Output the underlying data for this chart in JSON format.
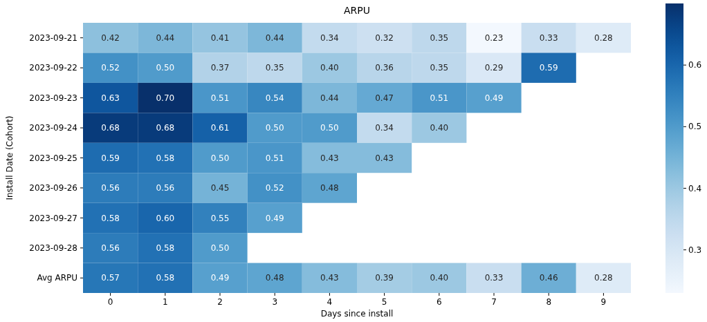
{
  "chart_data": {
    "type": "heatmap",
    "title": "ARPU",
    "xlabel": "Days since install",
    "ylabel": "Install Date (Cohort)",
    "categories": [
      "0",
      "1",
      "2",
      "3",
      "4",
      "5",
      "6",
      "7",
      "8",
      "9"
    ],
    "y_categories": [
      "2023-09-21",
      "2023-09-22",
      "2023-09-23",
      "2023-09-24",
      "2023-09-25",
      "2023-09-26",
      "2023-09-27",
      "2023-09-28",
      "Avg ARPU"
    ],
    "cells": [
      [
        0.42,
        0.44,
        0.41,
        0.44,
        0.34,
        0.32,
        0.35,
        0.23,
        0.33,
        0.28
      ],
      [
        0.52,
        0.5,
        0.37,
        0.35,
        0.4,
        0.36,
        0.35,
        0.29,
        0.59,
        null
      ],
      [
        0.63,
        0.7,
        0.51,
        0.54,
        0.44,
        0.47,
        0.51,
        0.49,
        null,
        null
      ],
      [
        0.68,
        0.68,
        0.61,
        0.5,
        0.5,
        0.34,
        0.4,
        null,
        null,
        null
      ],
      [
        0.59,
        0.58,
        0.5,
        0.51,
        0.43,
        0.43,
        null,
        null,
        null,
        null
      ],
      [
        0.56,
        0.56,
        0.45,
        0.52,
        0.48,
        null,
        null,
        null,
        null,
        null
      ],
      [
        0.58,
        0.6,
        0.55,
        0.49,
        null,
        null,
        null,
        null,
        null,
        null
      ],
      [
        0.56,
        0.58,
        0.5,
        null,
        null,
        null,
        null,
        null,
        null,
        null
      ],
      [
        0.57,
        0.58,
        0.49,
        0.48,
        0.43,
        0.39,
        0.4,
        0.33,
        0.46,
        0.28
      ]
    ],
    "cell_labels": [
      [
        "0.42",
        "0.44",
        "0.41",
        "0.44",
        "0.34",
        "0.32",
        "0.35",
        "0.23",
        "0.33",
        "0.28"
      ],
      [
        "0.52",
        "0.50",
        "0.37",
        "0.35",
        "0.40",
        "0.36",
        "0.35",
        "0.29",
        "0.59",
        null
      ],
      [
        "0.63",
        "0.70",
        "0.51",
        "0.54",
        "0.44",
        "0.47",
        "0.51",
        "0.49",
        null,
        null
      ],
      [
        "0.68",
        "0.68",
        "0.61",
        "0.50",
        "0.50",
        "0.34",
        "0.40",
        null,
        null,
        null
      ],
      [
        "0.59",
        "0.58",
        "0.50",
        "0.51",
        "0.43",
        "0.43",
        null,
        null,
        null,
        null
      ],
      [
        "0.56",
        "0.56",
        "0.45",
        "0.52",
        "0.48",
        null,
        null,
        null,
        null,
        null
      ],
      [
        "0.58",
        "0.60",
        "0.55",
        "0.49",
        null,
        null,
        null,
        null,
        null,
        null
      ],
      [
        "0.56",
        "0.58",
        "0.50",
        null,
        null,
        null,
        null,
        null,
        null,
        null
      ],
      [
        "0.57",
        "0.58",
        "0.49",
        "0.48",
        "0.43",
        "0.39",
        "0.40",
        "0.33",
        "0.46",
        "0.28"
      ]
    ],
    "clim": [
      0.23,
      0.7
    ],
    "cticks": [
      0.3,
      0.4,
      0.5,
      0.6
    ]
  }
}
